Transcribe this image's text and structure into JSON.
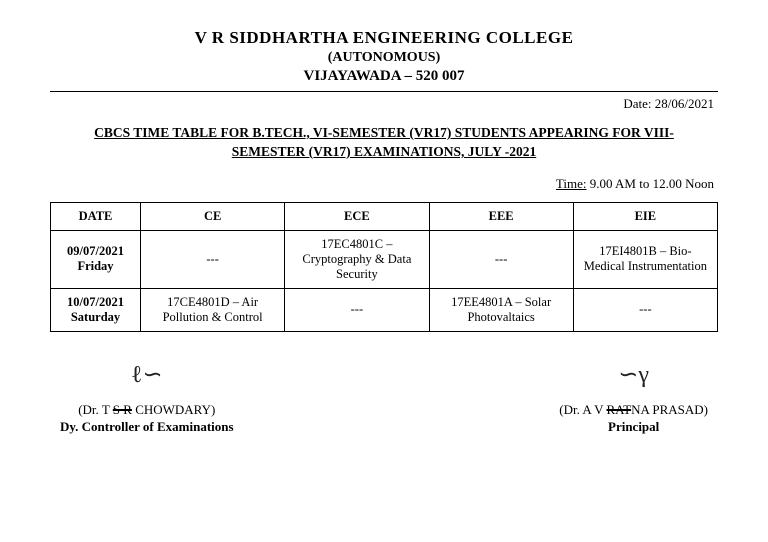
{
  "header": {
    "college": "V R SIDDHARTHA ENGINEERING COLLEGE",
    "autonomous": "(AUTONOMOUS)",
    "city": "VIJAYAWADA – 520 007"
  },
  "date_label": "Date: 28/06/2021",
  "subtitle": "CBCS TIME TABLE FOR B.TECH., VI-SEMESTER (VR17) STUDENTS APPEARING FOR VIII-SEMESTER (VR17) EXAMINATIONS, JULY -2021",
  "time_label": "Time:",
  "time_value": " 9.00 AM to 12.00 Noon",
  "table": {
    "headers": [
      "DATE",
      "CE",
      "ECE",
      "EEE",
      "EIE"
    ],
    "rows": [
      {
        "date": "09/07/2021",
        "day": "Friday",
        "ce": "---",
        "ece": "17EC4801C – Cryptography & Data Security",
        "eee": "---",
        "eie": "17EI4801B – Bio-Medical Instrumentation"
      },
      {
        "date": "10/07/2021",
        "day": "Saturday",
        "ce": "17CE4801D – Air Pollution & Control",
        "ece": "---",
        "eee": "17EE4801A – Solar Photovaltaics",
        "eie": "---"
      }
    ]
  },
  "signatures": {
    "left": {
      "prefix": "(Dr. T ",
      "strike": "S R",
      "suffix": " CHOWDARY)",
      "title": "Dy. Controller of Examinations"
    },
    "right": {
      "prefix": "(Dr. A V ",
      "strike": "RAT",
      "suffix": "NA PRASAD)",
      "title": "Principal"
    }
  }
}
